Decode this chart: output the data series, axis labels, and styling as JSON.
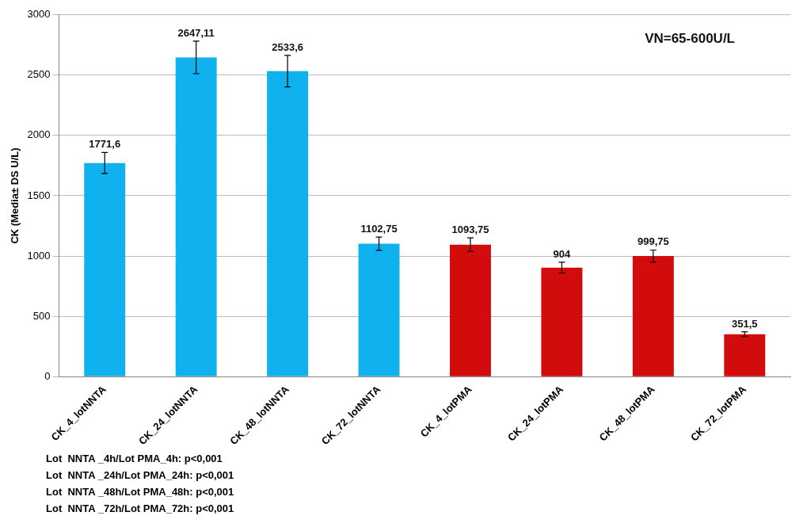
{
  "chart_data": {
    "type": "bar",
    "ylabel": "CK (Media± DS U/L)",
    "categories": [
      "CK_4_lotNNTA",
      "CK_24_lotNNTA",
      "CK_48_lotNNTA",
      "CK_72_lotNNTA",
      "CK_4_lotPMA",
      "CK_24_lotPMA",
      "CK_48_lotPMA",
      "CK_72_lotPMA"
    ],
    "values": [
      1771.6,
      2647.11,
      2533.6,
      1102.75,
      1093.75,
      904,
      999.75,
      351.5
    ],
    "colors": [
      "#0fb2ee",
      "#0fb2ee",
      "#0fb2ee",
      "#0fb2ee",
      "#d20c0c",
      "#d20c0c",
      "#d20c0c",
      "#d20c0c"
    ],
    "errors": [
      87,
      135,
      130,
      55,
      57,
      45,
      50,
      20
    ],
    "value_labels": [
      "1771,6",
      "2647,11",
      "2533,6",
      "1102,75",
      "1093,75",
      "904",
      "999,75",
      "351,5"
    ],
    "ylim": [
      0,
      3000
    ],
    "yticks": [
      0,
      500,
      1000,
      1500,
      2000,
      2500,
      3000
    ],
    "grid": "y",
    "legend": false,
    "annotations": [
      "VN=65-600U/L",
      "Lot  NNTA _4h/Lot PMA_4h: p<0,001",
      "Lot  NNTA _24h/Lot PMA_24h: p<0,001",
      "Lot  NNTA _48h/Lot PMA_48h: p<0,001",
      "Lot  NNTA _72h/Lot PMA_72h: p<0,001"
    ]
  }
}
